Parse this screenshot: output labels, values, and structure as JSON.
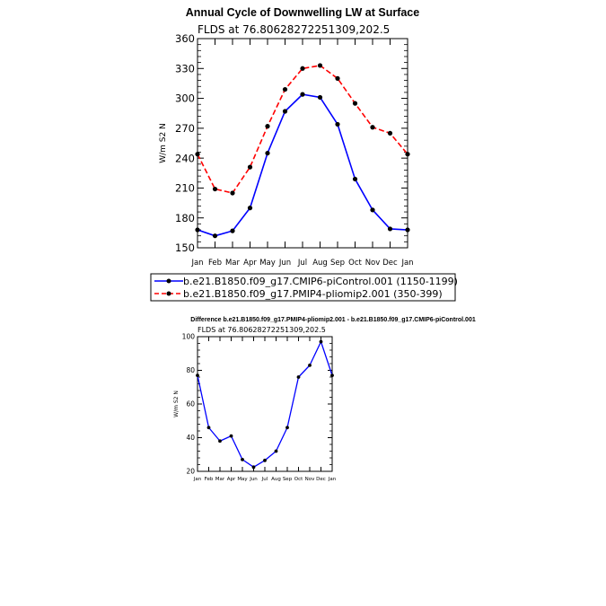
{
  "chart_data": [
    {
      "type": "line",
      "title": "Annual Cycle of Downwelling LW at Surface",
      "subtitle": "FLDS at 76.80628272251309,202.5",
      "xlabel": "",
      "ylabel": "W/m S2 N",
      "ylim": [
        150,
        360
      ],
      "yticks": [
        "150",
        "180",
        "210",
        "240",
        "270",
        "300",
        "330",
        "360"
      ],
      "categories": [
        "Jan",
        "Feb",
        "Mar",
        "Apr",
        "May",
        "Jun",
        "Jul",
        "Aug",
        "Sep",
        "Oct",
        "Nov",
        "Dec",
        "Jan"
      ],
      "grid": false,
      "series": [
        {
          "name": "b.e21.B1850.f09_g17.CMIP6-piControl.001  (1150-1199)",
          "color": "#0000ff",
          "dash": "solid",
          "values": [
            168,
            162,
            167,
            190,
            245,
            287,
            304,
            301,
            274,
            219,
            188,
            169,
            168
          ]
        },
        {
          "name": "b.e21.B1850.f09_g17.PMIP4-pliomip2.001  (350-399)",
          "color": "#ff0000",
          "dash": "dashed",
          "values": [
            244,
            209,
            205,
            231,
            272,
            309,
            330,
            333,
            320,
            295,
            271,
            265,
            244
          ]
        }
      ]
    },
    {
      "type": "line",
      "title": "Difference b.e21.B1850.f09_g17.PMIP4-pliomip2.001 - b.e21.B1850.f09_g17.CMIP6-piControl.001",
      "subtitle": "FLDS at 76.80628272251309,202.5",
      "xlabel": "",
      "ylabel": "W/m S2 N",
      "ylim": [
        20,
        100
      ],
      "yticks": [
        "20",
        "40",
        "60",
        "80",
        "100"
      ],
      "categories": [
        "Jan",
        "Feb",
        "Mar",
        "Apr",
        "May",
        "Jun",
        "Jul",
        "Aug",
        "Sep",
        "Oct",
        "Nov",
        "Dec",
        "Jan"
      ],
      "grid": false,
      "series": [
        {
          "name": "",
          "color": "#0000ff",
          "dash": "solid",
          "values": [
            77,
            46,
            38,
            41,
            27,
            22.5,
            26.5,
            32,
            46,
            76,
            83,
            97,
            77
          ]
        }
      ]
    }
  ]
}
